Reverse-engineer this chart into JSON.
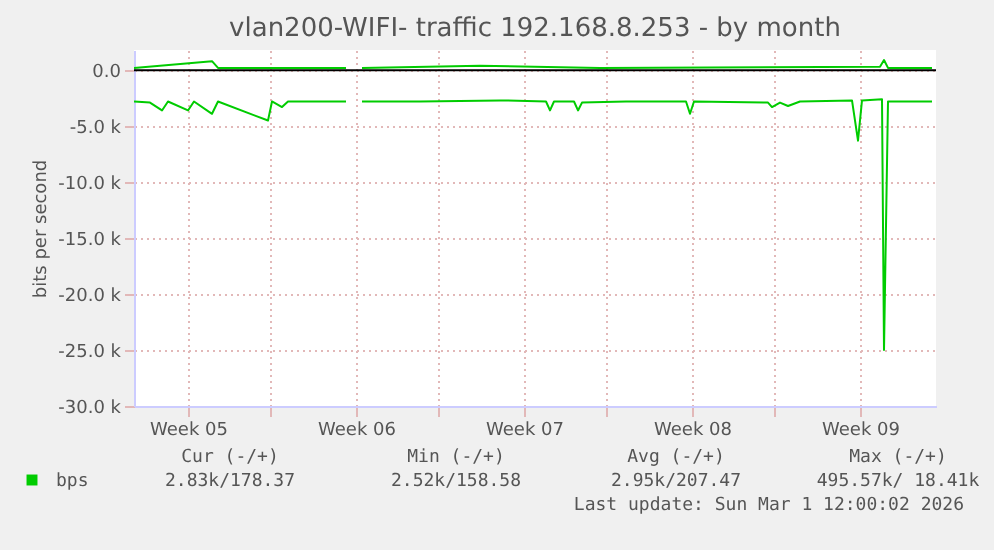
{
  "chart_data": {
    "type": "line",
    "title": "vlan200-WIFI- traffic 192.168.8.253 - by month",
    "ylabel": "bits per second",
    "xlim": [
      "2026-01-27T08:00",
      "2026-03-01T18:00"
    ],
    "xticks": [
      {
        "value": "2026-01-29T14:00",
        "label": "Week 05"
      },
      {
        "value": "2026-02-02T00:00",
        "label": null
      },
      {
        "value": "2026-02-05T14:00",
        "label": "Week 06"
      },
      {
        "value": "2026-02-09T00:00",
        "label": null
      },
      {
        "value": "2026-02-12T14:00",
        "label": "Week 07"
      },
      {
        "value": "2026-02-16T00:00",
        "label": null
      },
      {
        "value": "2026-02-19T14:00",
        "label": "Week 08"
      },
      {
        "value": "2026-02-23T00:00",
        "label": null
      },
      {
        "value": "2026-02-26T14:00",
        "label": "Week 09"
      }
    ],
    "ylim": [
      -30000,
      1800
    ],
    "yticks": [
      {
        "value": -30000,
        "label": "-30.0 k"
      },
      {
        "value": -25000,
        "label": "-25.0 k"
      },
      {
        "value": -20000,
        "label": "-20.0 k"
      },
      {
        "value": -15000,
        "label": "-15.0 k"
      },
      {
        "value": -10000,
        "label": "-10.0 k"
      },
      {
        "value": -5000,
        "label": "-5.0 k"
      },
      {
        "value": 0,
        "label": "0.0"
      }
    ],
    "grid": true,
    "legend": "bottom left",
    "ref_lines": [
      {
        "axis": "y",
        "value": 0,
        "color": "#000000"
      }
    ],
    "series": [
      {
        "name": "bps",
        "color": "#00cc00",
        "x": [
          "2026-01-27T08:00",
          "2026-01-30T14:00",
          "2026-01-30T20:00",
          "2026-02-05T04:00",
          "2026-02-05T12:00",
          "2026-02-05T20:00",
          "2026-02-10T18:00",
          "2026-02-15T18:00",
          "2026-02-27T10:00",
          "2026-02-27T14:00",
          "2026-02-27T18:00",
          "2026-03-01T14:00"
        ],
        "values": [
          200,
          800,
          200,
          200,
          null,
          200,
          400,
          200,
          300,
          900,
          200,
          200
        ]
      },
      {
        "color": "#00cc00",
        "x": [
          "2026-01-27T08:00",
          "2026-01-28T00:00",
          "2026-01-28T12:00",
          "2026-01-28T18:00",
          "2026-01-29T14:00",
          "2026-01-29T20:00",
          "2026-01-30T14:00",
          "2026-01-30T20:00",
          "2026-02-01T22:00",
          "2026-02-02T02:00",
          "2026-02-02T12:00",
          "2026-02-02T18:00",
          "2026-02-05T04:00",
          "2026-02-05T12:00",
          "2026-02-05T20:00",
          "2026-02-08T06:00",
          "2026-02-11T14:00",
          "2026-02-13T12:00",
          "2026-02-13T16:00",
          "2026-02-13T20:00",
          "2026-02-14T16:00",
          "2026-02-14T20:00",
          "2026-02-15T00:00",
          "2026-02-16T20:00",
          "2026-02-19T08:00",
          "2026-02-19T12:00",
          "2026-02-19T16:00",
          "2026-02-22T18:00",
          "2026-02-22T22:00",
          "2026-02-23T06:00",
          "2026-02-23T14:00",
          "2026-02-24T02:00",
          "2026-02-26T06:00",
          "2026-02-26T12:00",
          "2026-02-26T16:00",
          "2026-02-27T12:00",
          "2026-02-27T14:00",
          "2026-02-27T18:00",
          "2026-03-01T14:00"
        ],
        "values": [
          -2800,
          -2900,
          -3600,
          -2800,
          -3600,
          -2800,
          -3900,
          -2800,
          -4500,
          -2800,
          -3300,
          -2800,
          -2800,
          null,
          -2800,
          -2800,
          -2700,
          -2800,
          -3600,
          -2800,
          -2800,
          -3600,
          -2900,
          -2800,
          -2800,
          -3900,
          -2800,
          -2900,
          -3300,
          -2900,
          -3200,
          -2800,
          -2700,
          -6300,
          -2700,
          -2600,
          -25000,
          -2800,
          -2800
        ]
      }
    ],
    "annotations": [
      "Cur (-/+)",
      "Min (-/+)",
      "Avg (-/+)",
      "Max (-/+)",
      "2.83k/178.37",
      "2.52k/158.58",
      "2.95k/207.47",
      "495.57k/ 18.41k",
      "Last update: Sun Mar  1 12:00:02 2026"
    ]
  }
}
